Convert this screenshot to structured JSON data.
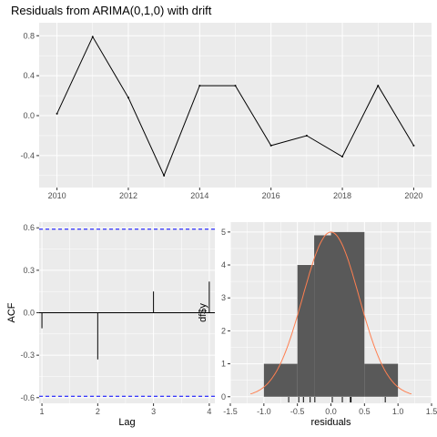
{
  "chart_data": [
    {
      "type": "line",
      "title": "Residuals from ARIMA(0,1,0) with drift",
      "xlabel": "",
      "ylabel": "",
      "x": [
        2010,
        2011,
        2012,
        2013,
        2014,
        2015,
        2016,
        2017,
        2018,
        2019,
        2020
      ],
      "y": [
        0.02,
        0.79,
        0.18,
        -0.6,
        0.3,
        0.3,
        -0.3,
        -0.2,
        -0.41,
        0.3,
        -0.3
      ],
      "xlim": [
        2009.5,
        2020.5
      ],
      "ylim": [
        -0.72,
        0.93
      ],
      "xticks": [
        2010,
        2012,
        2014,
        2016,
        2018,
        2020
      ],
      "xtick_labels": [
        "2010",
        "2012",
        "2014",
        "2016",
        "2018",
        "2020"
      ],
      "yticks": [
        -0.4,
        0.0,
        0.4,
        0.8
      ],
      "ytick_labels": [
        "-0.4",
        "0.0",
        "0.4",
        "0.8"
      ],
      "grid": true,
      "colors": {
        "line": "#000000",
        "panel": "#ebebeb",
        "grid": "#ffffff"
      }
    },
    {
      "type": "bar",
      "title": "",
      "xlabel": "Lag",
      "ylabel": "ACF",
      "x": [
        1,
        2,
        3,
        4
      ],
      "values": [
        -0.11,
        -0.33,
        0.15,
        0.22
      ],
      "confidence_bound": 0.59,
      "xlim": [
        0.95,
        4.1
      ],
      "ylim": [
        -0.64,
        0.64
      ],
      "xticks": [
        1,
        2,
        3,
        4
      ],
      "xtick_labels": [
        "1",
        "2",
        "3",
        "4"
      ],
      "yticks": [
        -0.6,
        -0.3,
        0.0,
        0.3,
        0.6
      ],
      "ytick_labels": [
        "-0.6",
        "-0.3",
        "0.0",
        "0.3",
        "0.6"
      ],
      "grid": true,
      "colors": {
        "bars": "#000000",
        "bounds": "#0000ff",
        "panel": "#ebebeb",
        "grid": "#ffffff"
      }
    },
    {
      "type": "bar",
      "title": "",
      "xlabel": "residuals",
      "ylabel": "df$y",
      "bins": [
        {
          "from": -1.0,
          "to": -0.5,
          "count": 1
        },
        {
          "from": -0.5,
          "to": -0.25,
          "count": 4
        },
        {
          "from": -0.25,
          "to": 0.0,
          "count": 4.9
        },
        {
          "from": 0.0,
          "to": 0.5,
          "count": 5
        },
        {
          "from": 0.5,
          "to": 1.0,
          "count": 1
        }
      ],
      "rug": [
        -0.63,
        -0.48,
        -0.41,
        -0.31,
        -0.24,
        0.02,
        0.17,
        0.29,
        0.3,
        0.81
      ],
      "normal_curve": {
        "mean": 0.0,
        "sd": 0.42,
        "peak": 5.0,
        "range": [
          -1.2,
          1.2
        ]
      },
      "xlim": [
        -1.5,
        1.5
      ],
      "ylim": [
        -0.2,
        5.3
      ],
      "xticks": [
        -1.5,
        -1.0,
        -0.5,
        0.0,
        0.5,
        1.0,
        1.5
      ],
      "xtick_labels": [
        "-1.5",
        "-1.0",
        "-0.5",
        "0.0",
        "0.5",
        "1.0",
        "1.5"
      ],
      "yticks": [
        0,
        1,
        2,
        3,
        4,
        5
      ],
      "ytick_labels": [
        "0",
        "1",
        "2",
        "3",
        "4",
        "5"
      ],
      "grid": true,
      "colors": {
        "bars": "#595959",
        "curve": "#ff7f50",
        "rug": "#000000",
        "panel": "#ebebeb",
        "grid": "#ffffff"
      }
    }
  ]
}
